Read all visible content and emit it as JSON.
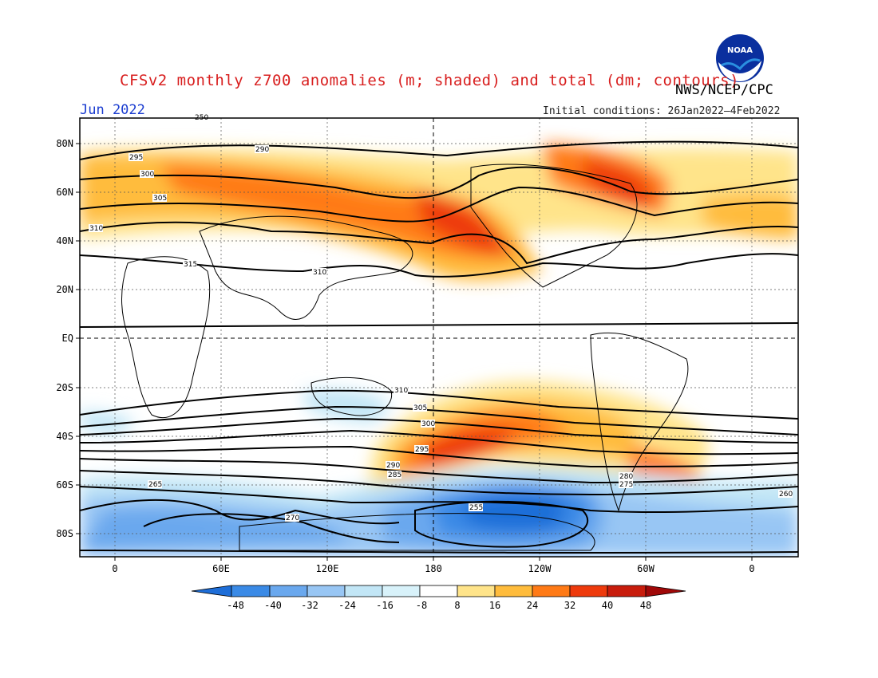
{
  "title": "CFSv2 monthly z700 anomalies (m; shaded) and total (dm; contours)",
  "agency": "NWS/NCEP/CPC",
  "logo_text": "NOAA",
  "month": "Jun 2022",
  "initial_conditions": "Initial conditions: 26Jan2022–4Feb2022",
  "lat_labels": [
    "80N",
    "60N",
    "40N",
    "20N",
    "EQ",
    "20S",
    "40S",
    "60S",
    "80S"
  ],
  "lon_labels": [
    "0",
    "60E",
    "120E",
    "180",
    "120W",
    "60W",
    "0"
  ],
  "colorbar": {
    "ticks": [
      "-48",
      "-40",
      "-32",
      "-24",
      "-16",
      "-8",
      "8",
      "16",
      "24",
      "32",
      "40",
      "48"
    ],
    "colors": [
      "#1e6ed8",
      "#3a8ae6",
      "#6aa8ee",
      "#98c6f4",
      "#c2e6f6",
      "#ffffff",
      "#ffe48a",
      "#ffbc3c",
      "#ff7a16",
      "#ee3a0c",
      "#b80a0a"
    ]
  },
  "contour_labels": [
    "250",
    "290",
    "295",
    "300",
    "305",
    "310",
    "315",
    "310",
    "310",
    "305",
    "300",
    "295",
    "290",
    "285",
    "280",
    "275",
    "270",
    "265",
    "260",
    "255"
  ]
}
